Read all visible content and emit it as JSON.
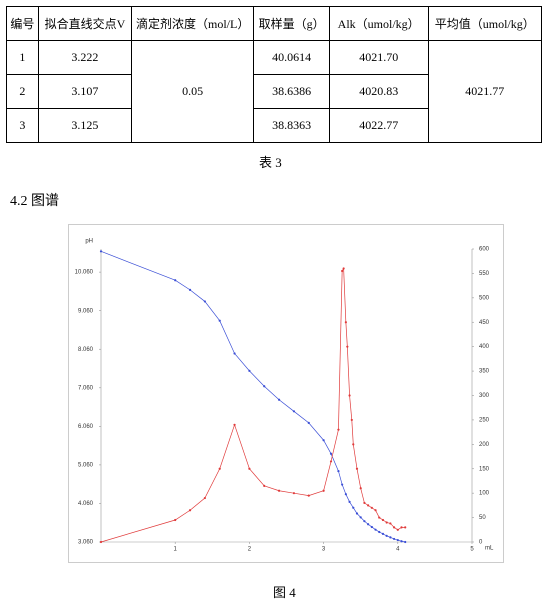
{
  "table": {
    "header": [
      "编号",
      "拟合直线交点V",
      "滴定剂浓度（mol/L）",
      "取样量（g）",
      "Alk（umol/kg）",
      "平均值（umol/kg）"
    ],
    "rows": [
      [
        "1",
        "3.222",
        "0.05",
        "40.0614",
        "4021.70",
        "4021.77"
      ],
      [
        "2",
        "3.107",
        "38.6386",
        "4020.83"
      ],
      [
        "3",
        "3.125",
        "38.8363",
        "4022.77"
      ]
    ],
    "caption": "表 3"
  },
  "section_title": "4.2 图谱",
  "chart_data": {
    "type": "line",
    "y_label": "pH",
    "x_label": "mL",
    "xlim": [
      0,
      5
    ],
    "xticks": [
      1,
      2,
      3,
      4,
      5
    ],
    "ylim": [
      3.06,
      10.66
    ],
    "yticks": [
      {
        "value": 3.06,
        "label": "3.060"
      },
      {
        "value": 4.06,
        "label": "4.060"
      },
      {
        "value": 5.06,
        "label": "5.060"
      },
      {
        "value": 6.06,
        "label": "6.060"
      },
      {
        "value": 7.06,
        "label": "7.060"
      },
      {
        "value": 8.06,
        "label": "8.060"
      },
      {
        "value": 9.06,
        "label": "9.060"
      },
      {
        "value": 10.06,
        "label": "10.060"
      }
    ],
    "y2lim": [
      0,
      600
    ],
    "y2ticks": [
      0,
      50,
      100,
      150,
      200,
      250,
      300,
      350,
      400,
      450,
      500,
      550,
      600
    ],
    "series": [
      {
        "color": "#3b4fd6",
        "x": [
          0,
          1.0,
          1.2,
          1.4,
          1.6,
          1.8,
          2.0,
          2.2,
          2.4,
          2.6,
          2.8,
          3.0,
          3.1,
          3.2,
          3.25,
          3.3,
          3.35,
          3.4,
          3.45,
          3.5,
          3.55,
          3.6,
          3.65,
          3.7,
          3.75,
          3.8,
          3.85,
          3.9,
          3.95,
          4.0,
          4.05,
          4.1
        ],
        "values": [
          10.6,
          9.85,
          9.6,
          9.3,
          8.8,
          7.95,
          7.5,
          7.1,
          6.75,
          6.45,
          6.15,
          5.7,
          5.35,
          4.9,
          4.55,
          4.3,
          4.1,
          3.95,
          3.8,
          3.7,
          3.6,
          3.52,
          3.45,
          3.38,
          3.32,
          3.27,
          3.22,
          3.18,
          3.14,
          3.11,
          3.08,
          3.06
        ]
      },
      {
        "color": "#e03a3a",
        "axis": "y2",
        "x": [
          0,
          1.0,
          1.2,
          1.4,
          1.6,
          1.8,
          2.0,
          2.2,
          2.4,
          2.6,
          2.8,
          3.0,
          3.1,
          3.2,
          3.25,
          3.27,
          3.3,
          3.32,
          3.35,
          3.38,
          3.4,
          3.45,
          3.5,
          3.55,
          3.6,
          3.65,
          3.7,
          3.75,
          3.8,
          3.85,
          3.9,
          3.95,
          4.0,
          4.05,
          4.1
        ],
        "values": [
          0,
          45,
          65,
          90,
          150,
          240,
          150,
          115,
          105,
          100,
          95,
          105,
          165,
          230,
          555,
          560,
          450,
          400,
          300,
          250,
          200,
          150,
          110,
          80,
          75,
          70,
          65,
          50,
          45,
          40,
          38,
          30,
          25,
          30,
          30
        ]
      }
    ]
  },
  "figure_caption": "图 4"
}
